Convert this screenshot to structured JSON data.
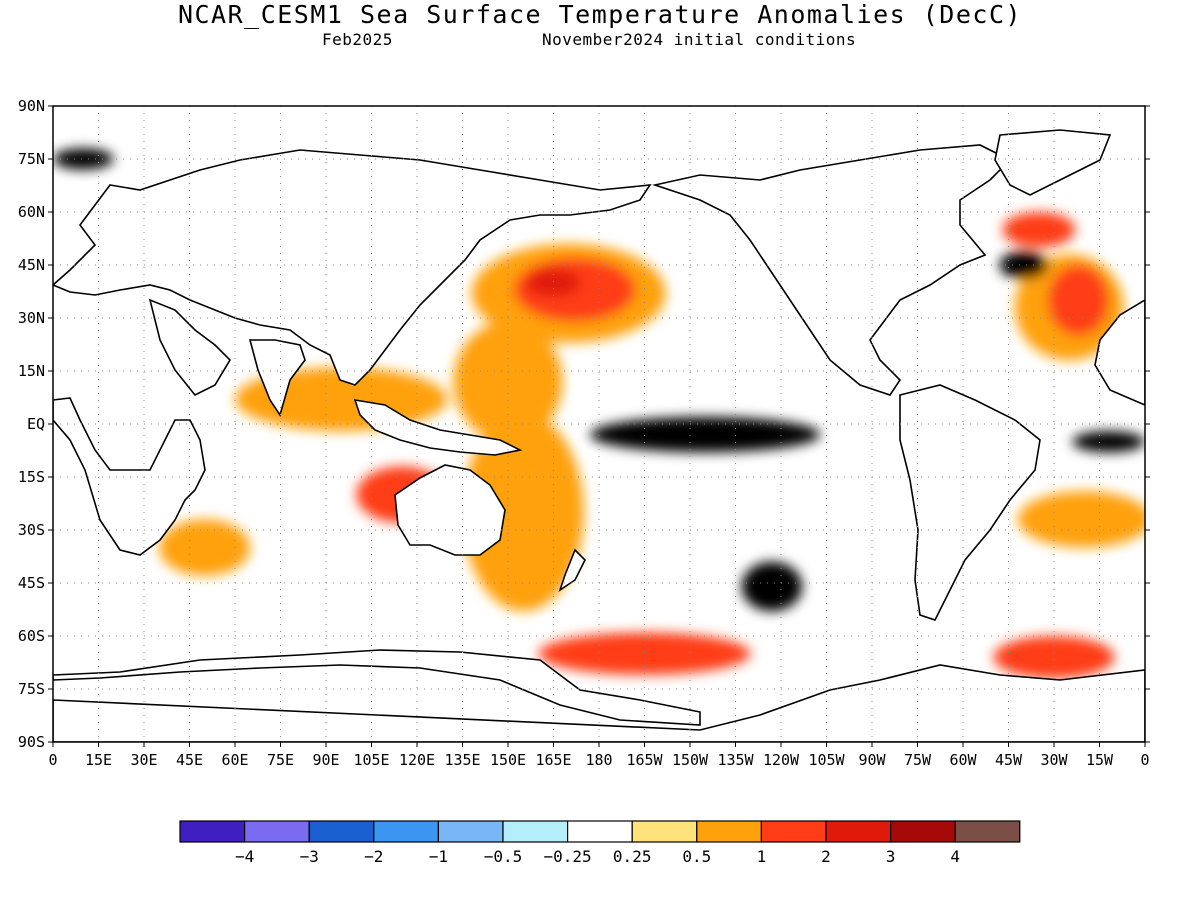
{
  "title": "NCAR_CESM1 Sea Surface Temperature Anomalies (DecC)",
  "subtitle_left": "Feb2025",
  "subtitle_right": "November2024 initial conditions",
  "axes": {
    "y_ticks": [
      "90N",
      "75N",
      "60N",
      "45N",
      "30N",
      "15N",
      "EQ",
      "15S",
      "30S",
      "45S",
      "60S",
      "75S",
      "90S"
    ],
    "x_ticks": [
      "0",
      "15E",
      "30E",
      "45E",
      "60E",
      "75E",
      "90E",
      "105E",
      "120E",
      "135E",
      "150E",
      "165E",
      "180",
      "165W",
      "150W",
      "135W",
      "120W",
      "105W",
      "90W",
      "75W",
      "60W",
      "45W",
      "30W",
      "15W",
      "0"
    ],
    "lon_range": [
      0,
      360
    ],
    "lat_range": [
      -90,
      90
    ],
    "grid": "dotted"
  },
  "legend": {
    "colors": [
      "#3f1fbf",
      "#7b6bf0",
      "#1b5fcf",
      "#3b96f2",
      "#78b6f5",
      "#b4eefa",
      "#ffffff",
      "#ffe27a",
      "#ffa10a",
      "#ff3e15",
      "#e01a0a",
      "#a50a08",
      "#7b4f45"
    ],
    "labels": [
      "−4",
      "−3",
      "−2",
      "−1",
      "−0.5",
      "−0.25",
      "0.25",
      "0.5",
      "1",
      "2",
      "3",
      "4"
    ]
  },
  "anomaly_patches": [
    {
      "lon": 170,
      "lat": 37,
      "rx": 32,
      "ry": 14,
      "level": "0.5"
    },
    {
      "lon": 172,
      "lat": 38,
      "rx": 20,
      "ry": 9,
      "level": "1"
    },
    {
      "lon": 165,
      "lat": 40,
      "rx": 9,
      "ry": 4,
      "level": "2"
    },
    {
      "lon": 150,
      "lat": 12,
      "rx": 18,
      "ry": 17,
      "level": "0.5"
    },
    {
      "lon": 95,
      "lat": 7,
      "rx": 35,
      "ry": 9,
      "level": "0.5"
    },
    {
      "lon": 155,
      "lat": -25,
      "rx": 20,
      "ry": 28,
      "level": "0.5"
    },
    {
      "lon": 115,
      "lat": -20,
      "rx": 15,
      "ry": 8,
      "level": "1"
    },
    {
      "lon": 195,
      "lat": -65,
      "rx": 35,
      "ry": 6,
      "level": "1"
    },
    {
      "lon": 330,
      "lat": -66,
      "rx": 20,
      "ry": 6,
      "level": "1"
    },
    {
      "lon": 335,
      "lat": 33,
      "rx": 18,
      "ry": 15,
      "level": "0.5"
    },
    {
      "lon": 338,
      "lat": 35,
      "rx": 10,
      "ry": 10,
      "level": "1"
    },
    {
      "lon": 325,
      "lat": 55,
      "rx": 12,
      "ry": 5,
      "level": "1"
    },
    {
      "lon": 340,
      "lat": -27,
      "rx": 22,
      "ry": 8,
      "level": "0.5"
    },
    {
      "lon": 215,
      "lat": -3,
      "rx": 38,
      "ry": 5,
      "level": "-1"
    },
    {
      "lon": 237,
      "lat": -46,
      "rx": 10,
      "ry": 7,
      "level": "-0.5"
    },
    {
      "lon": 50,
      "lat": -35,
      "rx": 15,
      "ry": 8,
      "level": "0.5"
    },
    {
      "lon": 320,
      "lat": 45,
      "rx": 8,
      "ry": 4,
      "level": "-1"
    },
    {
      "lon": 10,
      "lat": 75,
      "rx": 10,
      "ry": 3,
      "level": "-1"
    },
    {
      "lon": 348,
      "lat": -5,
      "rx": 12,
      "ry": 3,
      "level": "-0.5"
    }
  ]
}
